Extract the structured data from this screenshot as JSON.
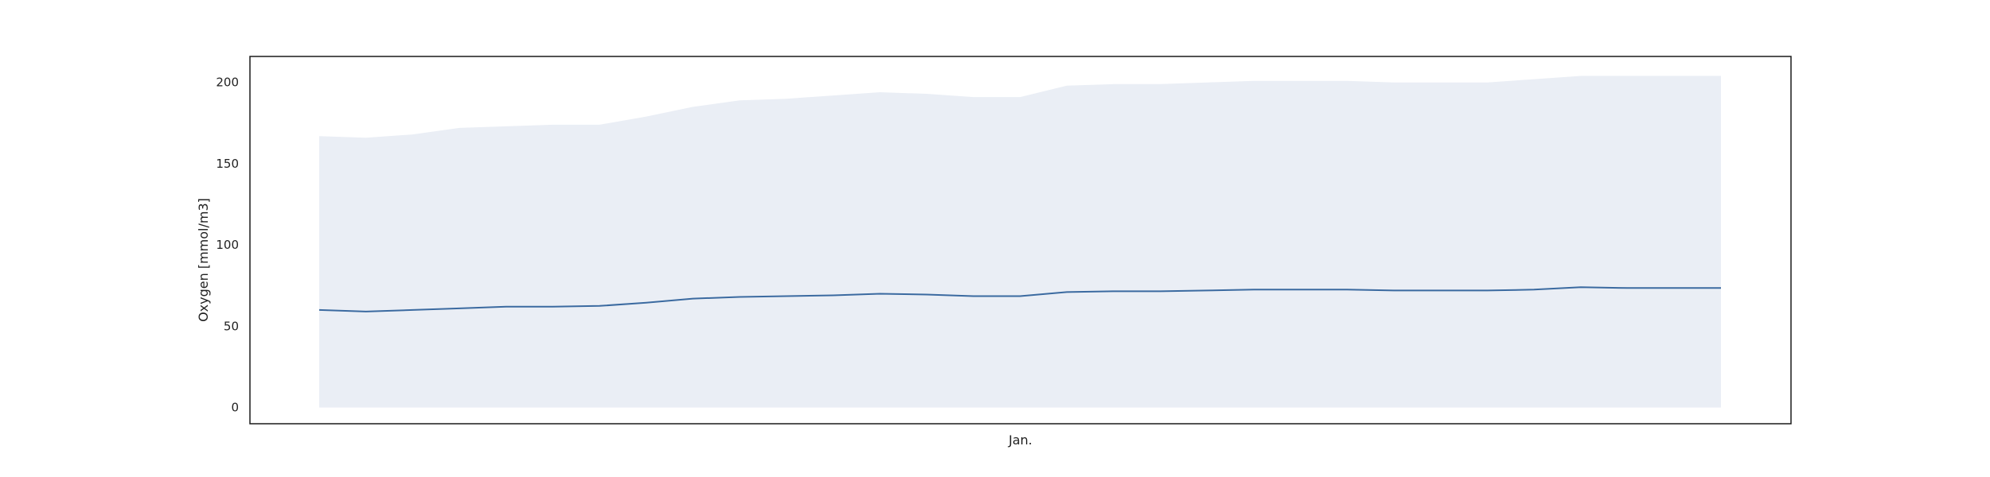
{
  "chart_data": {
    "type": "area",
    "title": "",
    "xlabel": "Jan.",
    "ylabel": "Oxygen [mmol/m3]",
    "ylim": [
      -10,
      216
    ],
    "yticks": [
      0,
      50,
      100,
      150,
      200
    ],
    "xticks": [],
    "grid": false,
    "legend": "none",
    "x": [
      0,
      1,
      2,
      3,
      4,
      5,
      6,
      7,
      8,
      9,
      10,
      11,
      12,
      13,
      14,
      15,
      16,
      17,
      18,
      19,
      20,
      21,
      22,
      23,
      24,
      25,
      26,
      27,
      28,
      29,
      30
    ],
    "series": [
      {
        "kind": "band",
        "color": "#eaeef5",
        "lower": [
          0,
          0,
          0,
          0,
          0,
          0,
          0,
          0,
          0,
          0,
          0,
          0,
          0,
          0,
          0,
          0,
          0,
          0,
          0,
          0,
          0,
          0,
          0,
          0,
          0,
          0,
          0,
          0,
          0,
          0,
          0
        ],
        "upper": [
          167,
          166,
          168,
          172,
          173,
          174,
          174,
          179,
          185,
          189,
          190,
          192,
          194,
          193,
          191,
          191,
          198,
          199,
          199,
          200,
          201,
          201,
          201,
          200,
          200,
          200,
          202,
          204,
          204,
          204,
          204
        ]
      },
      {
        "kind": "line",
        "color": "#3b6aa0",
        "values": [
          60,
          59,
          60,
          61,
          62,
          62,
          62.5,
          64.5,
          67,
          68,
          68.5,
          69,
          70,
          69.5,
          68.5,
          68.5,
          71,
          71.5,
          71.5,
          72,
          72.5,
          72.5,
          72.5,
          72,
          72,
          72,
          72.5,
          74,
          73.5,
          73.5,
          73.5
        ]
      }
    ]
  }
}
